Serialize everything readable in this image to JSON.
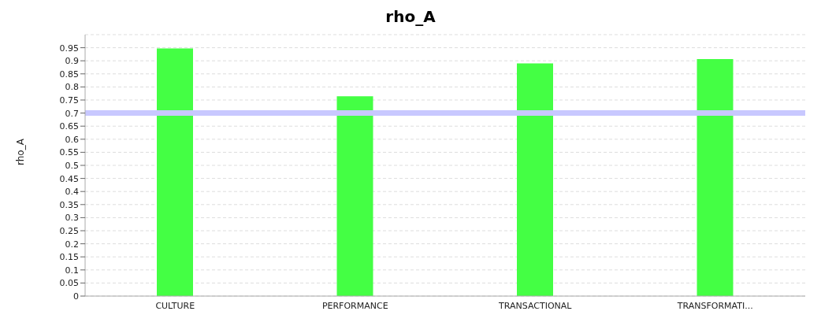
{
  "chart_data": {
    "type": "bar",
    "title": "rho_A",
    "ylabel": "rho_A",
    "categories": [
      "CULTURE",
      "PERFORMANCE",
      "TRANSACTIONAL",
      "TRANSFORMATI..."
    ],
    "values": [
      0.947,
      0.764,
      0.89,
      0.907
    ],
    "color": "#44ff44",
    "ylim": [
      0,
      1
    ],
    "yticks": [
      0,
      0.05,
      0.1,
      0.15,
      0.2,
      0.25,
      0.3,
      0.35,
      0.4,
      0.45,
      0.5,
      0.55,
      0.6,
      0.65,
      0.7,
      0.75,
      0.8,
      0.85,
      0.9,
      0.95
    ],
    "ref_lines": [
      {
        "axis": "y",
        "value": 0.7,
        "color": "#c8c8ff"
      }
    ],
    "grid": "y",
    "legend": false
  }
}
